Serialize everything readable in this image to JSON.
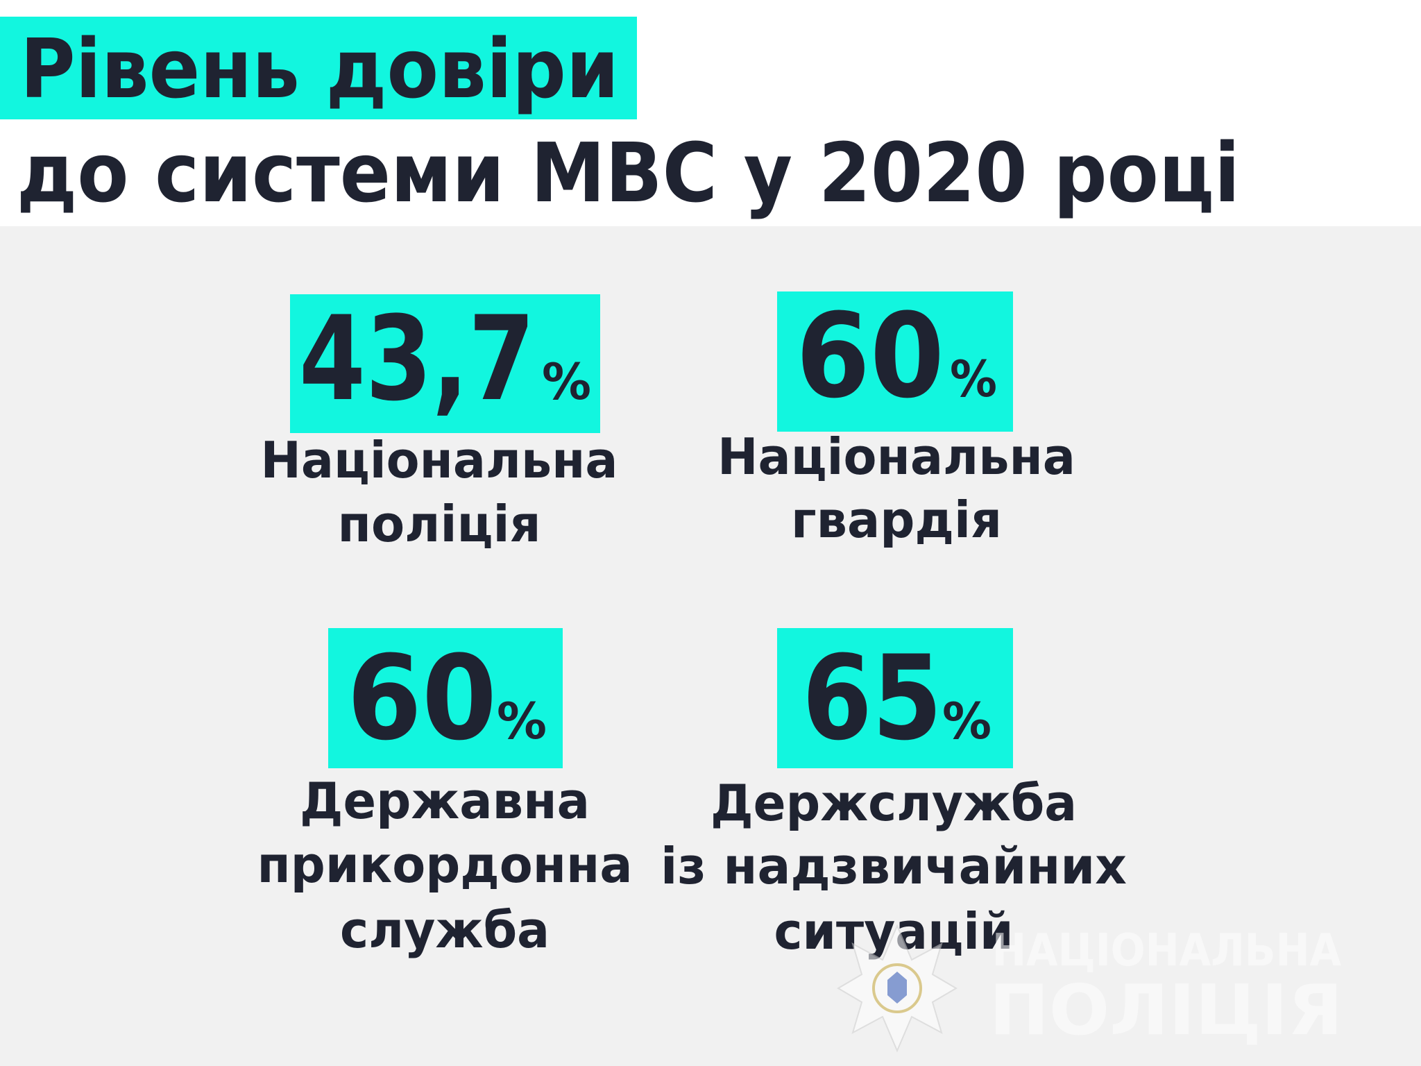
{
  "header": {
    "line1": "Рівень довіри",
    "line2": "до системи МВС у 2020 році"
  },
  "items": [
    {
      "value": "43,7",
      "unit": "%",
      "label": [
        "Національна",
        "поліція"
      ]
    },
    {
      "value": "60",
      "unit": "%",
      "label": [
        "Національна",
        "гвардія"
      ]
    },
    {
      "value": "60",
      "unit": "%",
      "label": [
        "Державна",
        "прикордонна",
        "служба"
      ]
    },
    {
      "value": "65",
      "unit": "%",
      "label": [
        "Держслужба",
        "із надзвичайних",
        "ситуацій"
      ]
    }
  ],
  "watermark": {
    "line1": "НАЦІОНАЛЬНА",
    "line2": "ПОЛІЦІЯ"
  }
}
